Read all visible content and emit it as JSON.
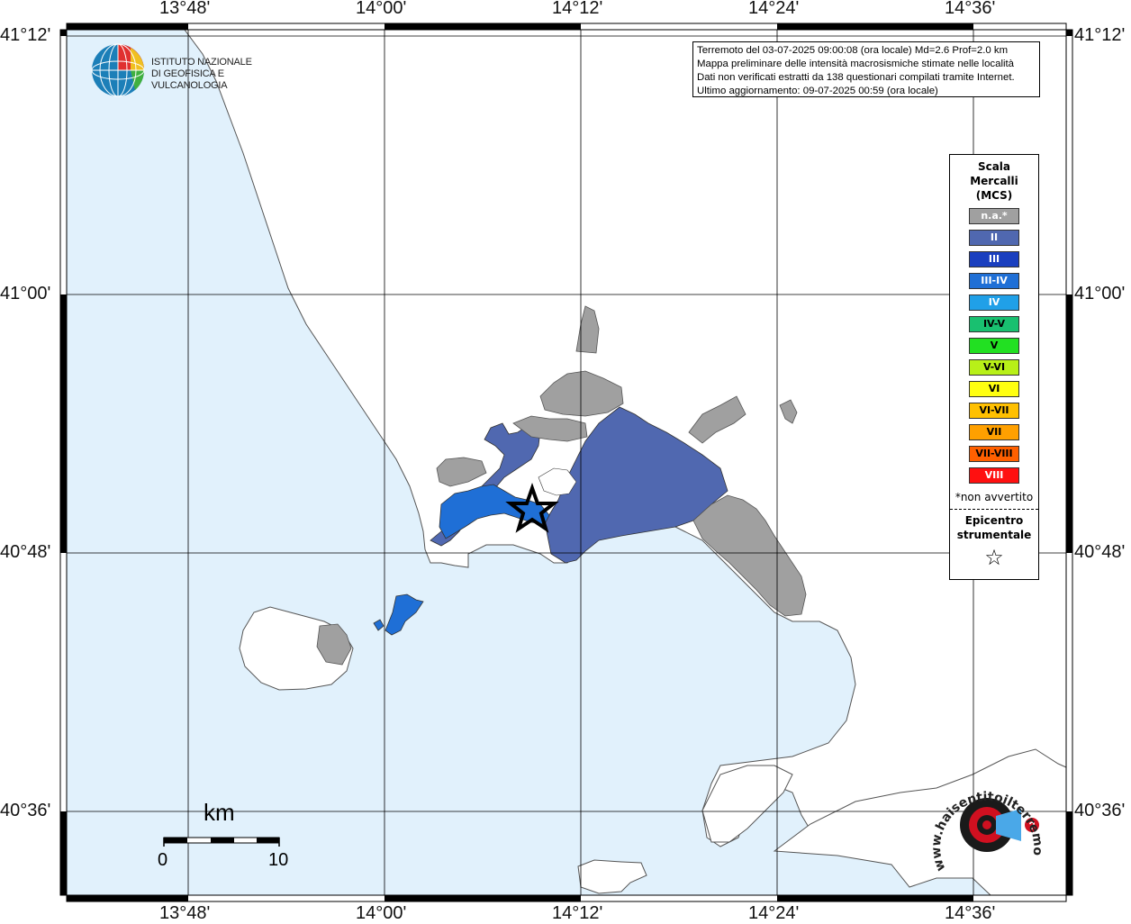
{
  "grid": {
    "lon_labels": [
      "13°48'",
      "14°00'",
      "14°12'",
      "14°24'",
      "14°36'"
    ],
    "lat_labels": [
      "41°12'",
      "41°00'",
      "40°48'",
      "40°36'"
    ]
  },
  "info": {
    "line1": "Terremoto del 03-07-2025 09:00:08 (ora locale) Md=2.6 Prof=2.0 km",
    "line2": "Mappa preliminare delle intensità macrosismiche stimate nelle località",
    "line3": "Dati non verificati estratti da 138 questionari compilati tramite Internet.",
    "line4": "Ultimo aggiornamento: 09-07-2025 00:59 (ora locale)"
  },
  "logo": {
    "line1": "ISTITUTO NAZIONALE",
    "line2": "DI GEOFISICA E VULCANOLOGIA"
  },
  "legend": {
    "title_line1": "Scala",
    "title_line2": "Mercalli",
    "title_line3": "(MCS)",
    "items": [
      {
        "label": "n.a.*",
        "color": "#a0a0a0",
        "text_color": "#ffffff"
      },
      {
        "label": "II",
        "color": "#5068b0",
        "text_color": "#ffffff"
      },
      {
        "label": "III",
        "color": "#1a3fbf",
        "text_color": "#ffffff"
      },
      {
        "label": "III-IV",
        "color": "#1f6fd6",
        "text_color": "#ffffff"
      },
      {
        "label": "IV",
        "color": "#20a0e8",
        "text_color": "#ffffff"
      },
      {
        "label": "IV-V",
        "color": "#19c070",
        "text_color": "#000000"
      },
      {
        "label": "V",
        "color": "#22e022",
        "text_color": "#000000"
      },
      {
        "label": "V-VI",
        "color": "#b8f018",
        "text_color": "#000000"
      },
      {
        "label": "VI",
        "color": "#ffff10",
        "text_color": "#000000"
      },
      {
        "label": "VI-VII",
        "color": "#ffc000",
        "text_color": "#000000"
      },
      {
        "label": "VII",
        "color": "#ffa000",
        "text_color": "#000000"
      },
      {
        "label": "VII-VIII",
        "color": "#ff6000",
        "text_color": "#000000"
      },
      {
        "label": "VIII",
        "color": "#ff1010",
        "text_color": "#ffffff"
      }
    ],
    "note": "*non avvertito",
    "epicentre_line1": "Epicentro",
    "epicentre_line2": "strumentale",
    "epicentre_symbol": "☆"
  },
  "scalebar": {
    "unit": "km",
    "start": "0",
    "end": "10"
  },
  "watermark": {
    "text": "www.haisentitoilterremoto.it"
  },
  "colors": {
    "sea": "#e1f1fc",
    "land": "#ffffff",
    "not_available": "#a0a0a0",
    "intensity_II": "#5068b0",
    "intensity_III_IV": "#1f6fd6"
  }
}
